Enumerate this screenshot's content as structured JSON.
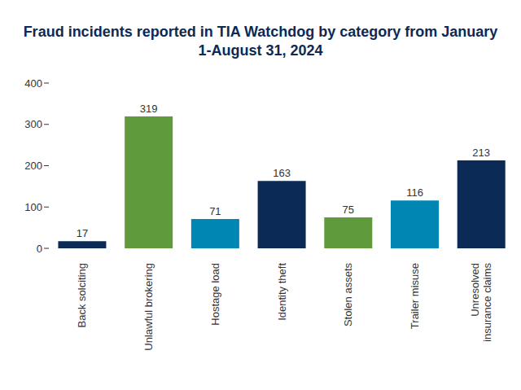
{
  "chart_data": {
    "type": "bar",
    "title": "Fraud incidents reported in TIA Watchdog by category from January 1-August 31, 2024",
    "categories": [
      "Back solciting",
      "Unlawful brokering",
      "Hostage load",
      "Identity theft",
      "Stolen assets",
      "Trailer misuse",
      "Unresolved insurance claims"
    ],
    "values": [
      17,
      319,
      71,
      163,
      75,
      116,
      213
    ],
    "colors": [
      "#0b2a55",
      "#5f9a3c",
      "#0086b3",
      "#0b2a55",
      "#5f9a3c",
      "#0086b3",
      "#0b2a55"
    ],
    "ylim": [
      0,
      400
    ],
    "yticks": [
      0,
      100,
      200,
      300,
      400
    ],
    "grid": false,
    "data_labels": true
  }
}
